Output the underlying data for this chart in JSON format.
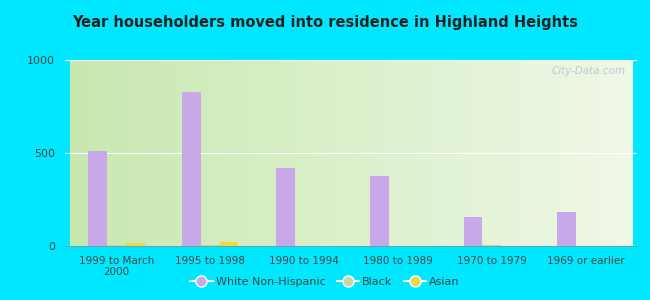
{
  "title": "Year householders moved into residence in Highland Heights",
  "categories": [
    "1999 to March\n2000",
    "1995 to 1998",
    "1990 to 1994",
    "1980 to 1989",
    "1970 to 1979",
    "1969 or earlier"
  ],
  "white_values": [
    510,
    830,
    420,
    375,
    155,
    185
  ],
  "black_values": [
    5,
    8,
    0,
    0,
    3,
    0
  ],
  "asian_values": [
    18,
    22,
    0,
    0,
    0,
    0
  ],
  "white_color": "#c8a8e8",
  "black_color": "#c8d8a0",
  "asian_color": "#f0d840",
  "ylim": [
    0,
    1000
  ],
  "yticks": [
    0,
    500,
    1000
  ],
  "outer_bg": "#00e8ff",
  "bar_width": 0.2,
  "watermark": "City-Data.com",
  "gradient_left": "#c8e8b0",
  "gradient_right": "#f0f8e8"
}
